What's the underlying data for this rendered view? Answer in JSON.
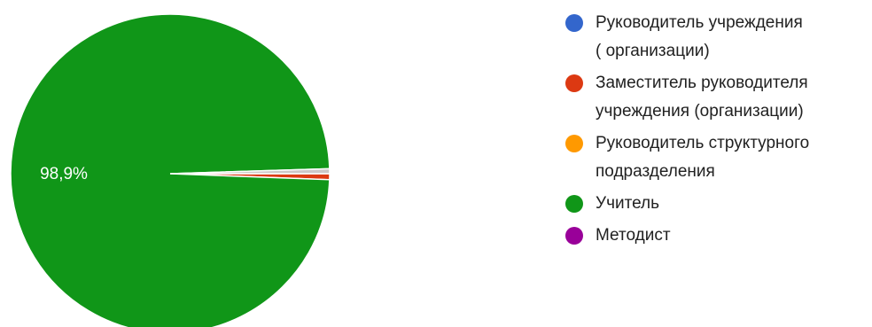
{
  "chart_data": {
    "type": "pie",
    "title": "",
    "start_angle_deg": 0,
    "slices": [
      {
        "label": "Руководитель учреждения\n( организации)",
        "value": 0,
        "color": "#3366cc"
      },
      {
        "label": "Заместитель руководителя\nучреждения (организации)",
        "value": 0.6,
        "color": "#dc3912"
      },
      {
        "label": "Руководитель структурного\nподразделения",
        "value": 0,
        "color": "#ff9900"
      },
      {
        "label": "Учитель",
        "value": 98.9,
        "color": "#109618"
      },
      {
        "label": "Методист",
        "value": 0,
        "color": "#990099"
      },
      {
        "label": "",
        "value": 0.5,
        "color": "#ccc8c8"
      }
    ],
    "slice_labels": [
      {
        "slice": 3,
        "text": "98,9%"
      }
    ],
    "legend_position": "right"
  }
}
